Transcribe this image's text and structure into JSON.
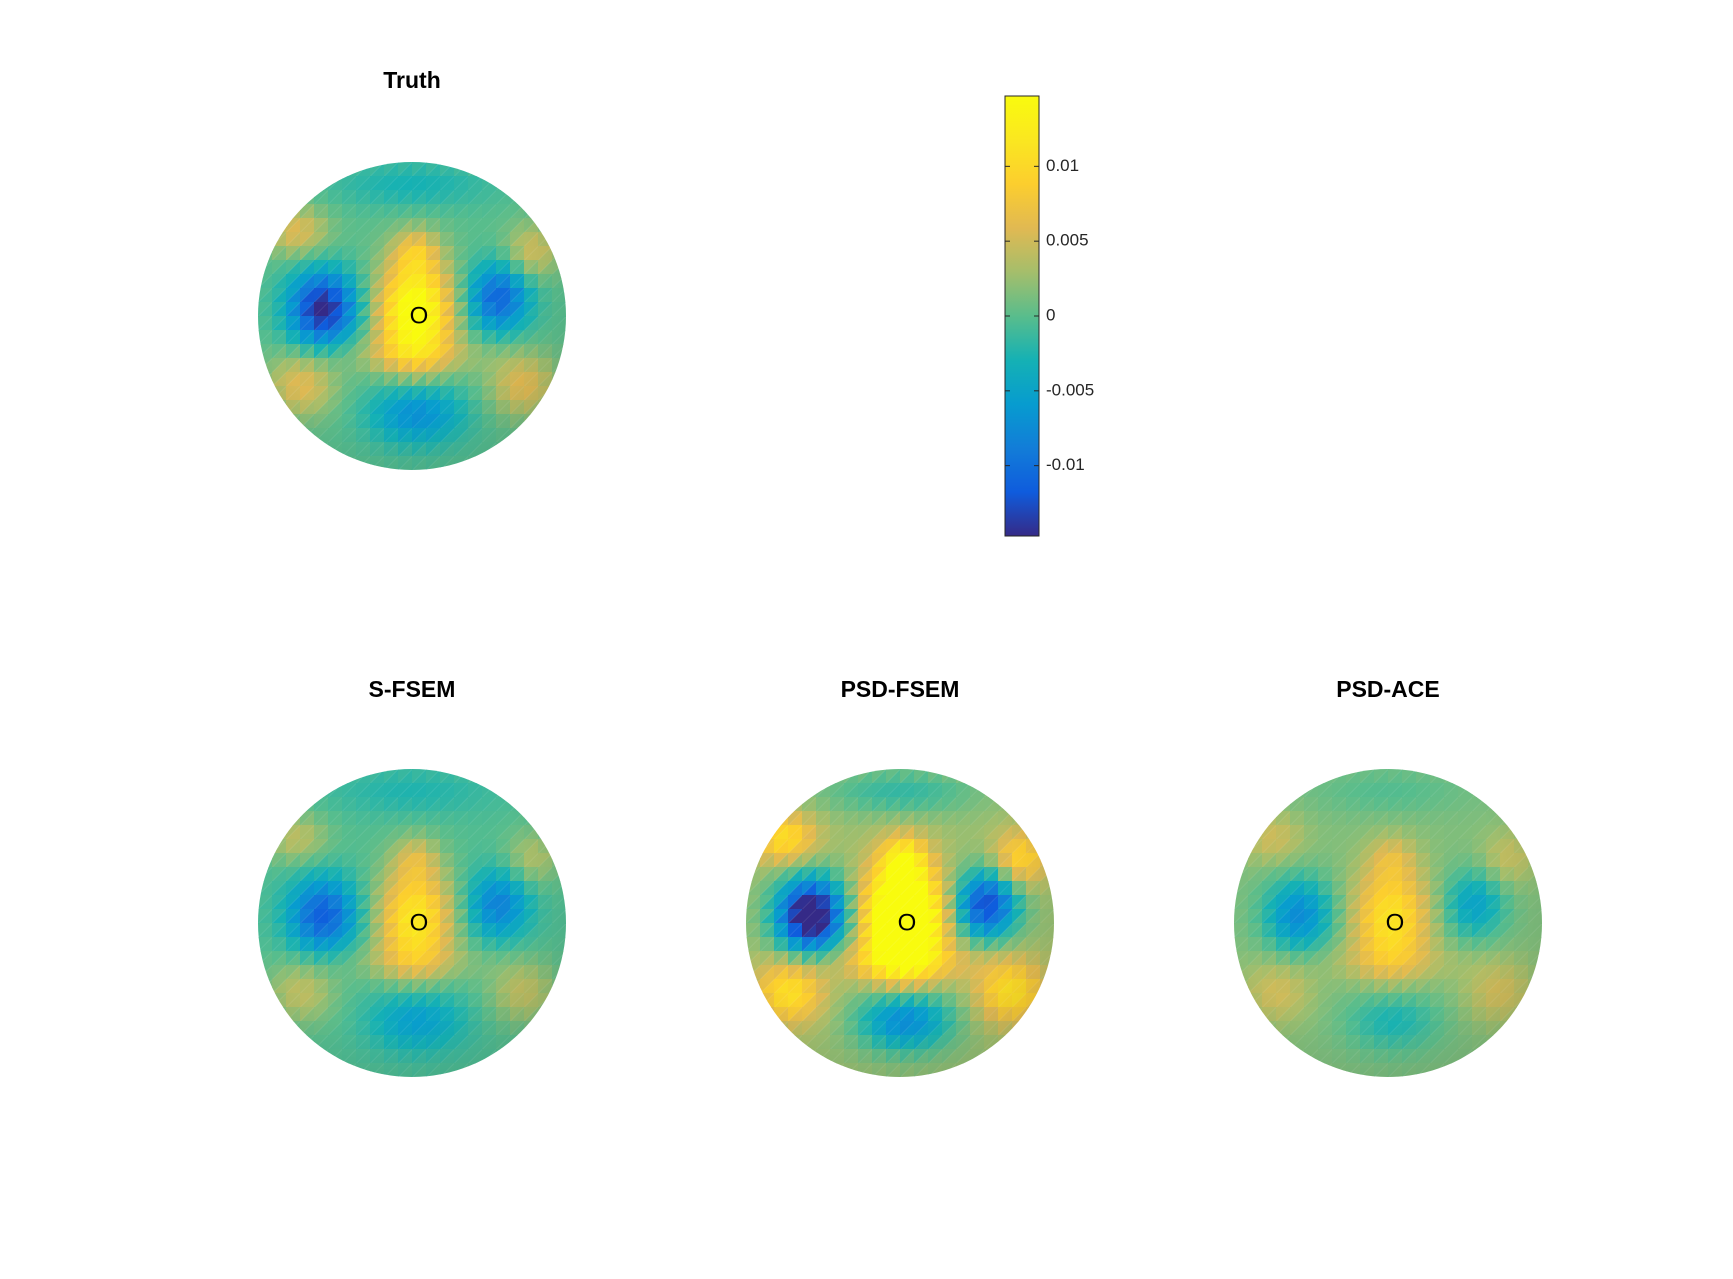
{
  "chart_data": [
    {
      "type": "heatmap",
      "title": "Truth",
      "marker_label": "O",
      "intensity": 1.0,
      "background_offset": 0.0
    },
    {
      "type": "heatmap",
      "title": "S-FSEM",
      "marker_label": "O",
      "intensity": 0.75,
      "background_offset": -0.0003
    },
    {
      "type": "heatmap",
      "title": "PSD-FSEM",
      "marker_label": "O",
      "intensity": 1.4,
      "background_offset": 0.0025
    },
    {
      "type": "heatmap",
      "title": "PSD-ACE",
      "marker_label": "O",
      "intensity": 0.6,
      "background_offset": 0.0015
    }
  ],
  "colorbar": {
    "colormap": "parula",
    "range": [
      -0.0147,
      0.0147
    ],
    "ticks": [
      0.01,
      0.005,
      0,
      -0.005,
      -0.01
    ],
    "tick_labels": [
      "0.01",
      "0.005",
      "0",
      "-0.005",
      "-0.01"
    ]
  }
}
